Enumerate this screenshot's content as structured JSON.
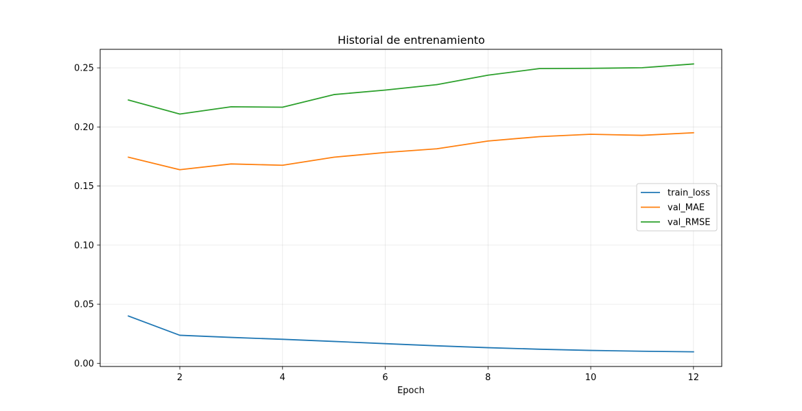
{
  "chart_data": {
    "type": "line",
    "title": "Historial de entrenamiento",
    "xlabel": "Epoch",
    "ylabel": "",
    "x": [
      1,
      2,
      3,
      4,
      5,
      6,
      7,
      8,
      9,
      10,
      11,
      12
    ],
    "xlim": [
      0.45,
      12.55
    ],
    "ylim": [
      -0.0027,
      0.2657
    ],
    "xticks": [
      2,
      4,
      6,
      8,
      10,
      12
    ],
    "xtick_labels": [
      "2",
      "4",
      "6",
      "8",
      "10",
      "12"
    ],
    "yticks": [
      0.0,
      0.05,
      0.1,
      0.15,
      0.2,
      0.25
    ],
    "ytick_labels": [
      "0.00",
      "0.05",
      "0.10",
      "0.15",
      "0.20",
      "0.25"
    ],
    "grid": true,
    "legend_position": "center-right",
    "series": [
      {
        "name": "train_loss",
        "color": "#1f77b4",
        "values": [
          0.04,
          0.0237,
          0.0219,
          0.0203,
          0.0185,
          0.0166,
          0.0148,
          0.0132,
          0.0119,
          0.0109,
          0.0102,
          0.0097
        ]
      },
      {
        "name": "val_MAE",
        "color": "#ff7f0e",
        "values": [
          0.1744,
          0.1638,
          0.1687,
          0.1676,
          0.1744,
          0.1784,
          0.1815,
          0.1881,
          0.1918,
          0.1938,
          0.1929,
          0.1951
        ]
      },
      {
        "name": "val_RMSE",
        "color": "#2ca02c",
        "values": [
          0.2228,
          0.2109,
          0.2171,
          0.2167,
          0.2274,
          0.2312,
          0.2358,
          0.2438,
          0.2494,
          0.2496,
          0.2501,
          0.2533
        ]
      }
    ]
  }
}
